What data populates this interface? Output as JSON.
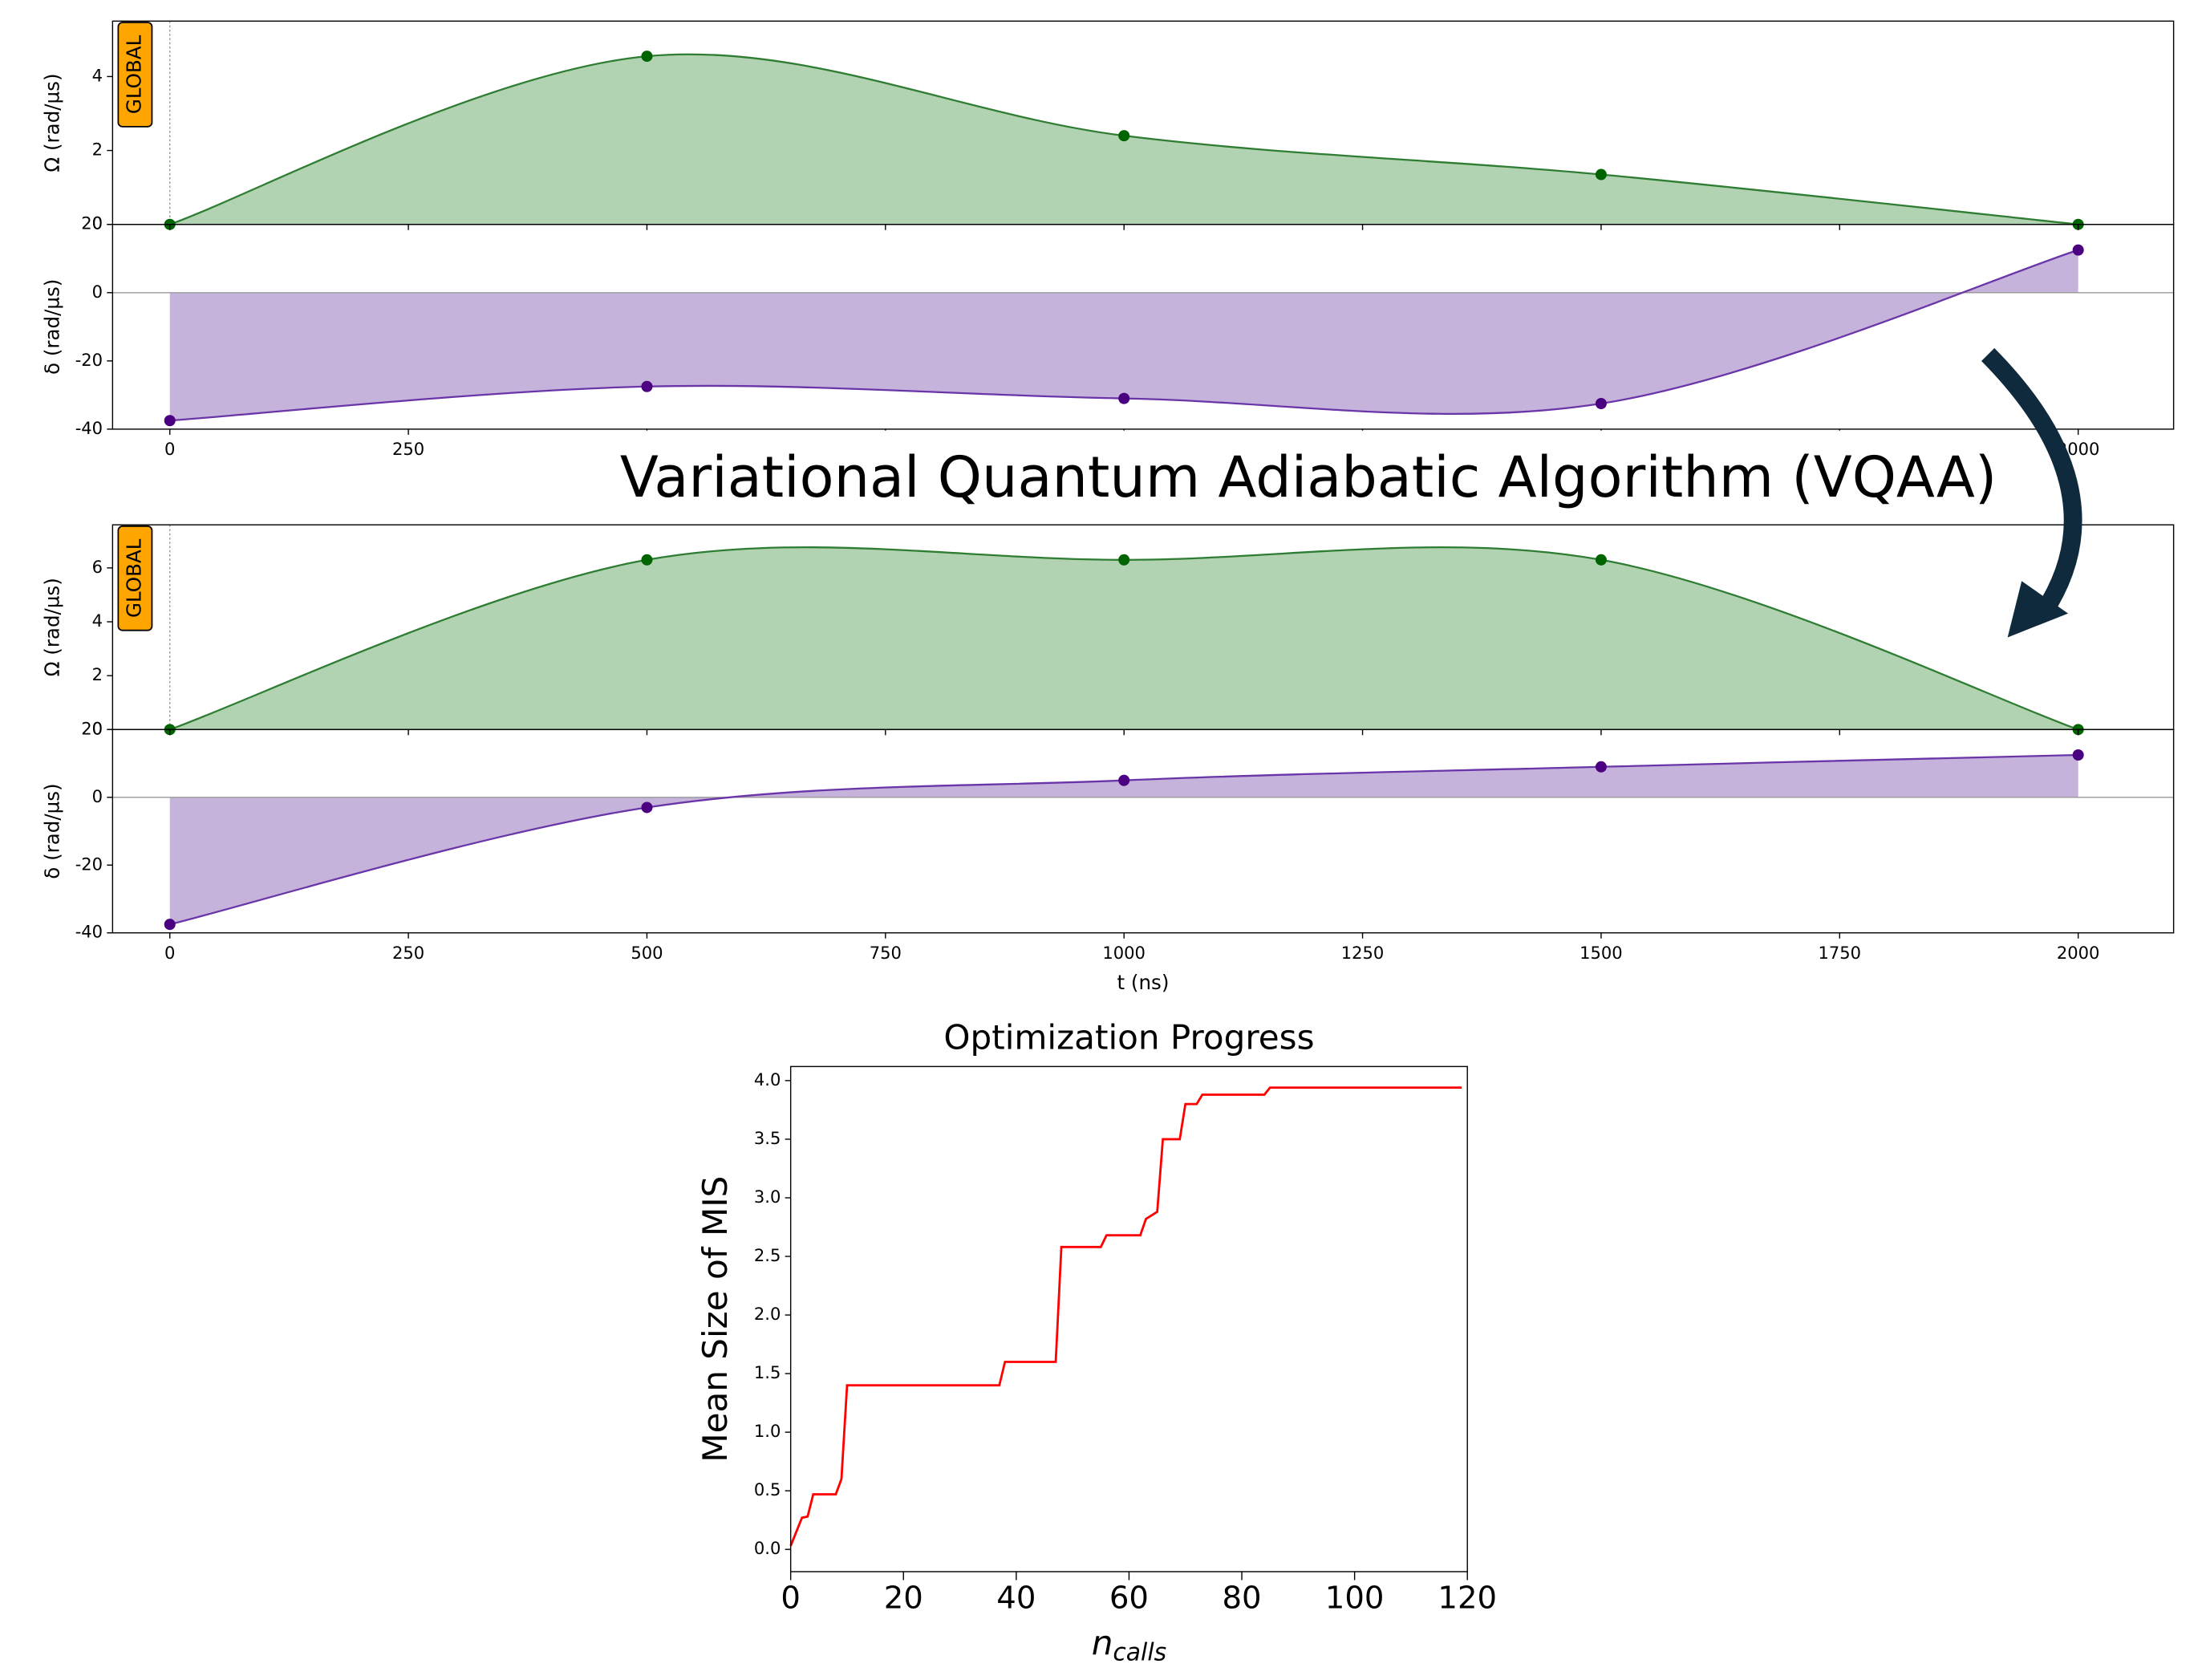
{
  "banner": "Variational Quantum Adiabatic Algorithm (VQAA)",
  "chart_data": [
    {
      "type": "area",
      "tag": "GLOBAL",
      "ylabel": "Ω (rad/µs)",
      "x": [
        0,
        500,
        1000,
        1500,
        2000
      ],
      "values": [
        0,
        4.55,
        2.4,
        1.35,
        0
      ],
      "color": "#2e7d32",
      "fill": "#b2d3b2",
      "point_color": "#006400",
      "xlim": [
        -60,
        2100
      ],
      "ylim": [
        0,
        5.5
      ],
      "yticks": [
        0,
        2,
        4
      ],
      "xticks": [
        0,
        250,
        500,
        750,
        1000,
        1250,
        1500,
        1750,
        2000
      ],
      "xtick_labels": false
    },
    {
      "type": "area",
      "ylabel": "δ (rad/µs)",
      "x": [
        0,
        500,
        1000,
        1500,
        2000
      ],
      "values": [
        -37.5,
        -27.5,
        -31,
        -32.5,
        12.5
      ],
      "color": "#6a35a8",
      "fill": "#c5b3db",
      "point_color": "#4b0082",
      "xlim": [
        -60,
        2100
      ],
      "ylim": [
        -40,
        20
      ],
      "yticks": [
        -40,
        -20,
        0,
        20
      ],
      "xticks": [
        0,
        250,
        500,
        750,
        1000,
        1250,
        1500,
        1750,
        2000
      ],
      "zero_line": true
    },
    {
      "type": "area",
      "tag": "GLOBAL",
      "ylabel": "Ω (rad/µs)",
      "x": [
        0,
        500,
        1000,
        1500,
        2000
      ],
      "values": [
        0,
        6.3,
        6.3,
        6.3,
        0
      ],
      "color": "#2e7d32",
      "fill": "#b2d3b2",
      "point_color": "#006400",
      "xlim": [
        -60,
        2100
      ],
      "ylim": [
        0,
        7.6
      ],
      "yticks": [
        0,
        2,
        4,
        6
      ],
      "xticks": [
        0,
        250,
        500,
        750,
        1000,
        1250,
        1500,
        1750,
        2000
      ],
      "xtick_labels": false
    },
    {
      "type": "area",
      "ylabel": "δ (rad/µs)",
      "xlabel": "t (ns)",
      "x": [
        0,
        500,
        1000,
        1500,
        2000
      ],
      "values": [
        -37.5,
        -3,
        5,
        9,
        12.5
      ],
      "color": "#6a35a8",
      "fill": "#c5b3db",
      "point_color": "#4b0082",
      "xlim": [
        -60,
        2100
      ],
      "ylim": [
        -40,
        20
      ],
      "yticks": [
        -40,
        -20,
        0,
        20
      ],
      "xticks": [
        0,
        250,
        500,
        750,
        1000,
        1250,
        1500,
        1750,
        2000
      ],
      "zero_line": true
    },
    {
      "type": "line",
      "title": "Optimization Progress",
      "ylabel": "Mean Size of MIS",
      "xlabel": "n",
      "xlabel_sub": "calls",
      "x": [
        0,
        1,
        2,
        3,
        4,
        8,
        9,
        10,
        37,
        38,
        47,
        48,
        55,
        56,
        62,
        63,
        65,
        66,
        69,
        70,
        72,
        73,
        84,
        85,
        119
      ],
      "values": [
        0.03,
        0.15,
        0.27,
        0.28,
        0.47,
        0.47,
        0.6,
        1.4,
        1.4,
        1.6,
        1.6,
        2.58,
        2.58,
        2.68,
        2.68,
        2.82,
        2.88,
        3.5,
        3.5,
        3.8,
        3.8,
        3.88,
        3.88,
        3.94,
        3.94
      ],
      "color": "#ff0000",
      "xlim": [
        0,
        120
      ],
      "ylim": [
        -0.19,
        4.12
      ],
      "xticks": [
        0,
        20,
        40,
        60,
        80,
        100,
        120
      ],
      "yticks": [
        {
          "value": 0,
          "label": "0.0"
        },
        0.5,
        {
          "value": 1,
          "label": "1.0"
        },
        1.5,
        {
          "value": 2,
          "label": "2.0"
        },
        2.5,
        {
          "value": 3,
          "label": "3.0"
        },
        3.5,
        {
          "value": 4,
          "label": "4.0"
        }
      ]
    }
  ]
}
